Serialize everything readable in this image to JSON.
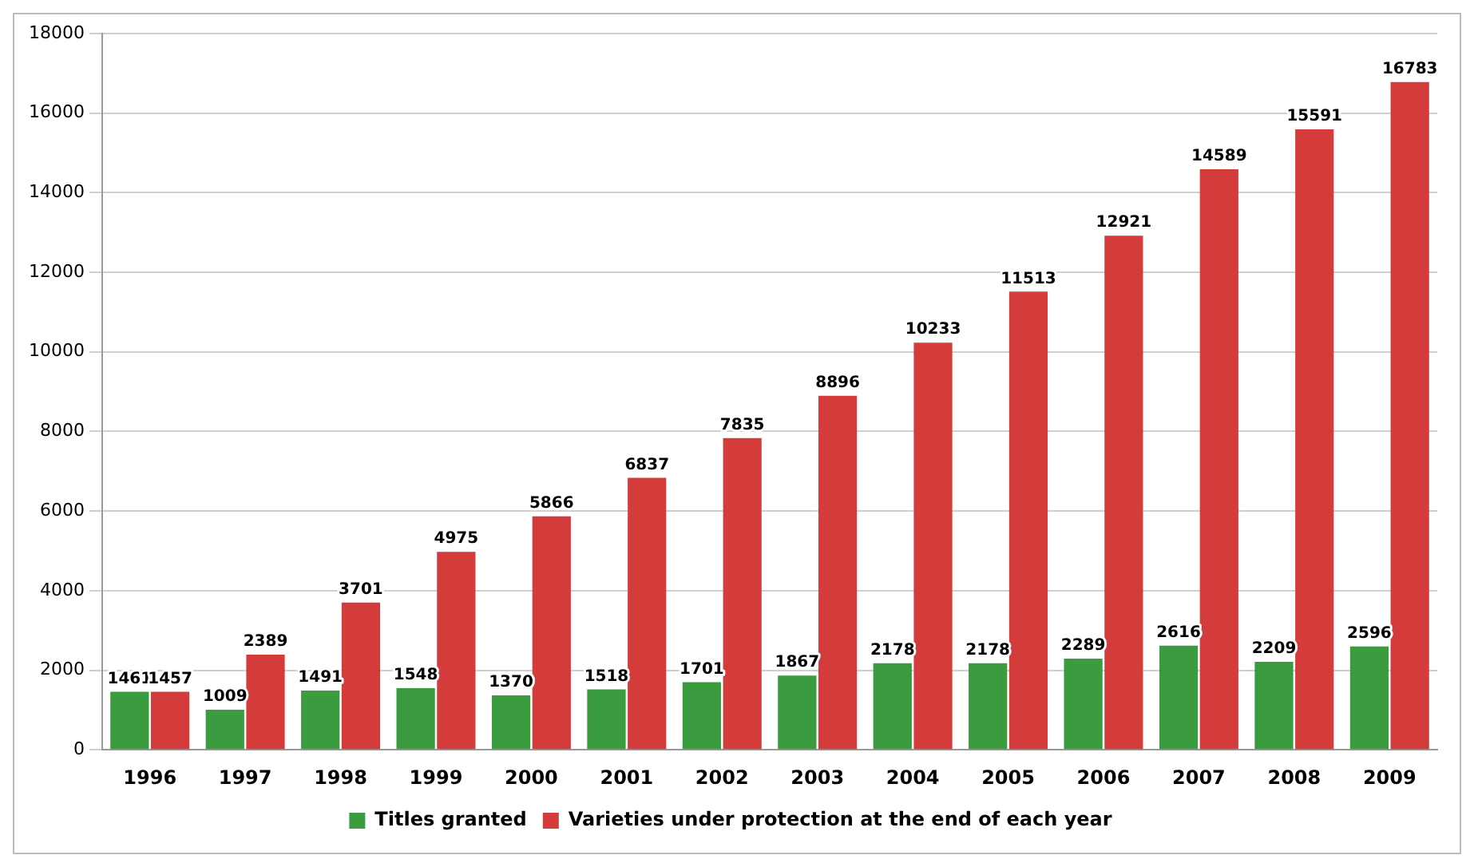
{
  "chart_data": {
    "type": "bar",
    "categories": [
      "1996",
      "1997",
      "1998",
      "1999",
      "2000",
      "2001",
      "2002",
      "2003",
      "2004",
      "2005",
      "2006",
      "2007",
      "2008",
      "2009"
    ],
    "series": [
      {
        "name": "Titles granted",
        "color": "#3a9c3e",
        "values": [
          1461,
          1009,
          1491,
          1548,
          1370,
          1518,
          1701,
          1867,
          2178,
          2178,
          2289,
          2616,
          2209,
          2596
        ]
      },
      {
        "name": "Varieties under protection at the end of each year",
        "color": "#d43c3c",
        "values": [
          1457,
          2389,
          3701,
          4975,
          5866,
          6837,
          7835,
          8896,
          10233,
          11513,
          12921,
          14589,
          15591,
          16783
        ]
      }
    ],
    "ylim": [
      0,
      18000
    ],
    "yticks": [
      0,
      2000,
      4000,
      6000,
      8000,
      10000,
      12000,
      14000,
      16000,
      18000
    ],
    "grid": "y",
    "legend": "bottom",
    "data_labels": true
  }
}
